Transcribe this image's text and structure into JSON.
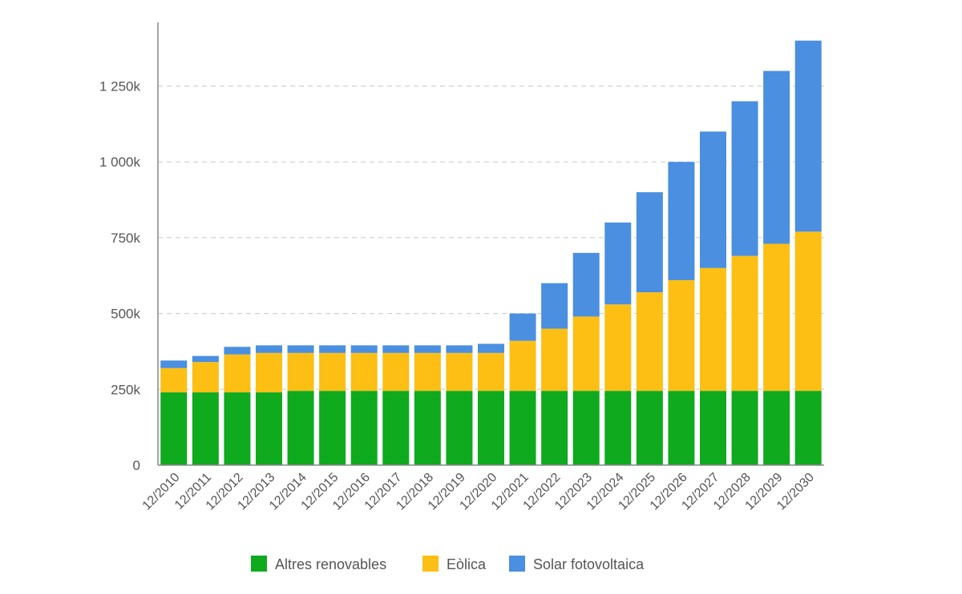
{
  "chart_data": {
    "type": "bar",
    "stacked": true,
    "categories": [
      "12/2010",
      "12/2011",
      "12/2012",
      "12/2013",
      "12/2014",
      "12/2015",
      "12/2016",
      "12/2017",
      "12/2018",
      "12/2019",
      "12/2020",
      "12/2021",
      "12/2022",
      "12/2023",
      "12/2024",
      "12/2025",
      "12/2026",
      "12/2027",
      "12/2028",
      "12/2029",
      "12/2030"
    ],
    "series": [
      {
        "name": "Altres renovables",
        "color": "#0faa1e",
        "values": [
          240,
          240,
          240,
          240,
          245,
          245,
          245,
          245,
          245,
          245,
          245,
          245,
          245,
          245,
          245,
          245,
          245,
          245,
          245,
          245,
          245
        ]
      },
      {
        "name": "Eòlica",
        "color": "#fdbf14",
        "values": [
          80,
          100,
          125,
          130,
          125,
          125,
          125,
          125,
          125,
          125,
          125,
          165,
          205,
          245,
          285,
          325,
          365,
          405,
          445,
          485,
          525
        ]
      },
      {
        "name": "Solar fotovoltaica",
        "color": "#4a8fe0",
        "values": [
          25,
          20,
          25,
          25,
          25,
          25,
          25,
          25,
          25,
          25,
          30,
          90,
          150,
          210,
          270,
          330,
          390,
          450,
          510,
          570,
          630
        ]
      }
    ],
    "yticks": [
      {
        "value": 0,
        "label": "0"
      },
      {
        "value": 250,
        "label": "250k"
      },
      {
        "value": 500,
        "label": "500k"
      },
      {
        "value": 750,
        "label": "750k"
      },
      {
        "value": 1000,
        "label": "1 000k"
      },
      {
        "value": 1250,
        "label": "1 250k"
      }
    ],
    "unit": "k",
    "ylim": [
      0,
      1460
    ],
    "grid": true,
    "legend_position": "bottom"
  }
}
